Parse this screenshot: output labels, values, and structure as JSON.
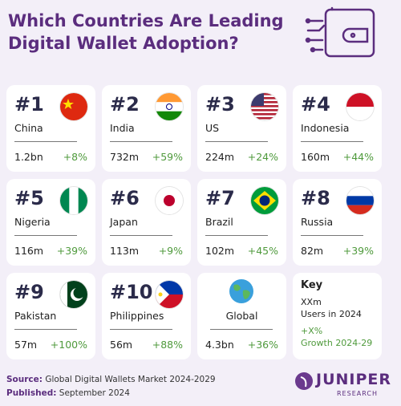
{
  "header": {
    "title_line1": "Which Countries Are Leading",
    "title_line2": "Digital Wallet Adoption?"
  },
  "cards": [
    {
      "rank": "#1",
      "country": "China",
      "users": "1.2bn",
      "growth": "+8%"
    },
    {
      "rank": "#2",
      "country": "India",
      "users": "732m",
      "growth": "+59%"
    },
    {
      "rank": "#3",
      "country": "US",
      "users": "224m",
      "growth": "+24%"
    },
    {
      "rank": "#4",
      "country": "Indonesia",
      "users": "160m",
      "growth": "+44%"
    },
    {
      "rank": "#5",
      "country": "Nigeria",
      "users": "116m",
      "growth": "+39%"
    },
    {
      "rank": "#6",
      "country": "Japan",
      "users": "113m",
      "growth": "+9%"
    },
    {
      "rank": "#7",
      "country": "Brazil",
      "users": "102m",
      "growth": "+45%"
    },
    {
      "rank": "#8",
      "country": "Russia",
      "users": "82m",
      "growth": "+39%"
    },
    {
      "rank": "#9",
      "country": "Pakistan",
      "users": "57m",
      "growth": "+100%"
    },
    {
      "rank": "#10",
      "country": "Philippines",
      "users": "56m",
      "growth": "+88%"
    }
  ],
  "global": {
    "label": "Global",
    "users": "4.3bn",
    "growth": "+36%"
  },
  "key": {
    "title": "Key",
    "users_placeholder": "XXm",
    "users_label": "Users in 2024",
    "growth_placeholder": "+X%",
    "growth_label": "Growth 2024-29"
  },
  "footer": {
    "source_label": "Source:",
    "source": "Global Digital Wallets Market 2024-2029",
    "published_label": "Published:",
    "published": "September 2024"
  },
  "logo": {
    "name": "JUNIPER",
    "sub": "RESEARCH"
  }
}
